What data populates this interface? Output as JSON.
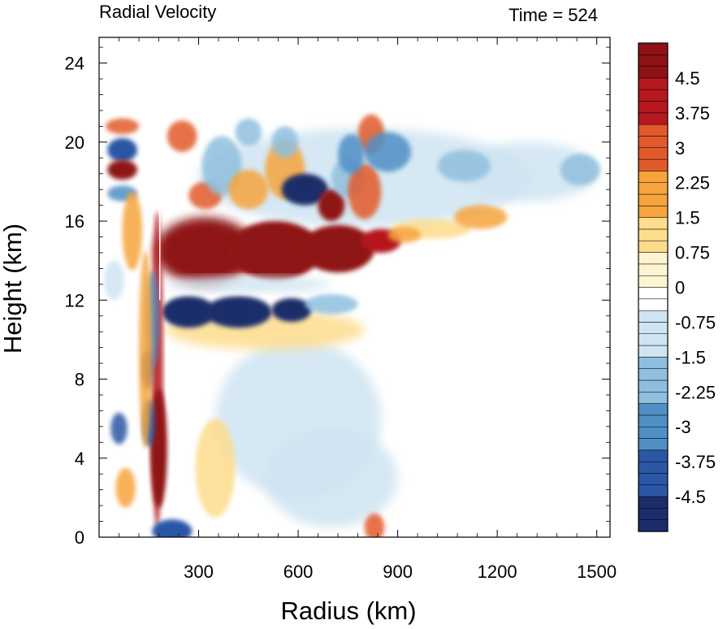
{
  "chart_data": {
    "type": "heatmap",
    "title": "Radial Velocity",
    "subtitle": "Time = 524",
    "xlabel": "Radius (km)",
    "ylabel": "Height (km)",
    "xlim": [
      0,
      1540
    ],
    "ylim": [
      0,
      25.3
    ],
    "x_ticks": [
      300,
      600,
      900,
      1200,
      1500
    ],
    "x_tick_labels": [
      "300",
      "600",
      "900",
      "1200",
      "1500"
    ],
    "y_ticks": [
      0,
      4,
      8,
      12,
      16,
      20,
      24
    ],
    "y_tick_labels": [
      "0",
      "4",
      "8",
      "12",
      "16",
      "20",
      "24"
    ],
    "colorbar": {
      "min": -5.25,
      "max": 5.25,
      "step": 0.25,
      "labels": [
        "4.5",
        "3.75",
        "3",
        "2.25",
        "1.5",
        "0.75",
        "0",
        "-0.75",
        "-1.5",
        "-2.25",
        "-3",
        "-3.75",
        "-4.5"
      ],
      "label_values": [
        4.5,
        3.75,
        3,
        2.25,
        1.5,
        0.75,
        0,
        -0.75,
        -1.5,
        -2.25,
        -3,
        -3.75,
        -4.5
      ],
      "colors_neg_to_pos": [
        "#1b2d6b",
        "#2a57a6",
        "#4f8fc6",
        "#8fbfdf",
        "#cfe4f1",
        "#ffffff",
        "#fff4d2",
        "#fddc8c",
        "#f6a43d",
        "#e25a2c",
        "#b5191f",
        "#8f1217"
      ]
    },
    "features": [
      {
        "name": "upper outflow jet",
        "r": [
          180,
          850
        ],
        "z": [
          13,
          16.5
        ],
        "value": 5.5
      },
      {
        "name": "mid-level inflow",
        "r": [
          200,
          620
        ],
        "z": [
          10.6,
          12.4
        ],
        "value": -5
      },
      {
        "name": "eyewall updraft column",
        "r": [
          130,
          200
        ],
        "z": [
          0,
          17
        ],
        "value": "alternating"
      }
    ],
    "grid": false,
    "legend": "colorbar right"
  }
}
